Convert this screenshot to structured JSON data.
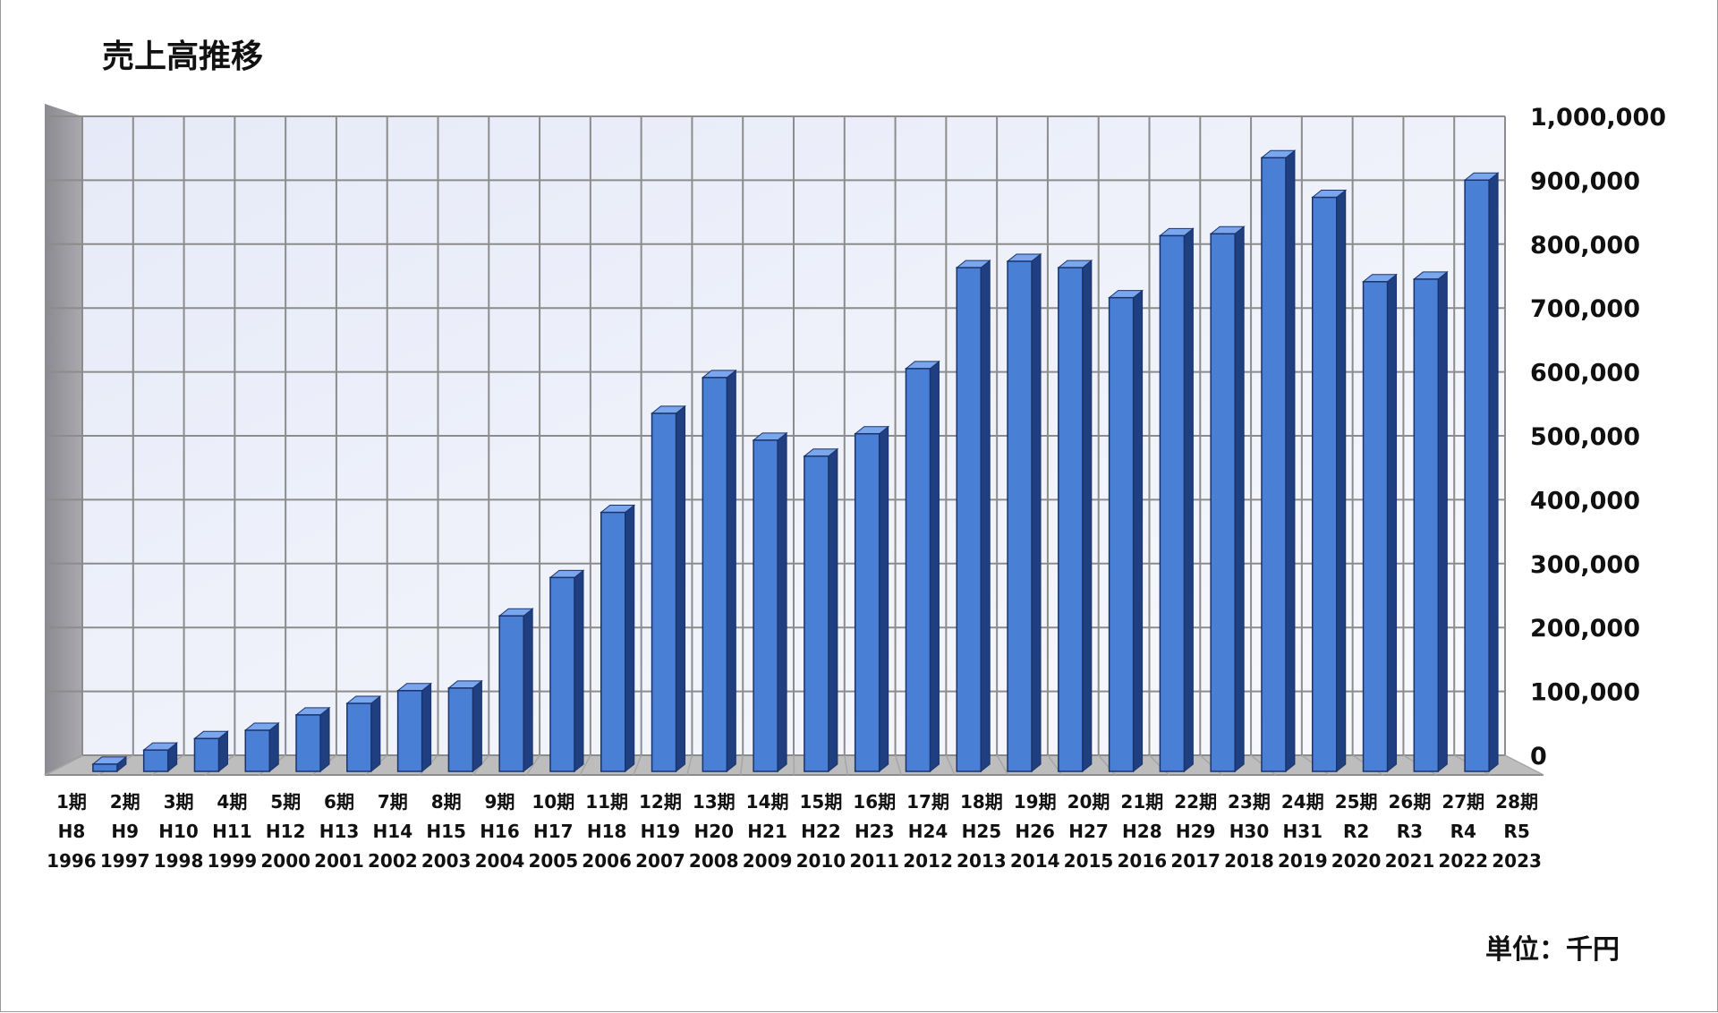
{
  "chart_data": {
    "type": "bar",
    "title": "売上高推移",
    "unit_note": "単位：千円",
    "ylim": [
      0,
      1000000
    ],
    "y_ticks": [
      "0",
      "100,000",
      "200,000",
      "300,000",
      "400,000",
      "500,000",
      "600,000",
      "700,000",
      "800,000",
      "900,000",
      "1,000,000"
    ],
    "y_tick_values": [
      0,
      100000,
      200000,
      300000,
      400000,
      500000,
      600000,
      700000,
      800000,
      900000,
      1000000
    ],
    "grid": true,
    "categories": [
      [
        "1期",
        "H8",
        "1996"
      ],
      [
        "2期",
        "H9",
        "1997"
      ],
      [
        "3期",
        "H10",
        "1998"
      ],
      [
        "4期",
        "H11",
        "1999"
      ],
      [
        "5期",
        "H12",
        "2000"
      ],
      [
        "6期",
        "H13",
        "2001"
      ],
      [
        "7期",
        "H14",
        "2002"
      ],
      [
        "8期",
        "H15",
        "2003"
      ],
      [
        "9期",
        "H16",
        "2004"
      ],
      [
        "10期",
        "H17",
        "2005"
      ],
      [
        "11期",
        "H18",
        "2006"
      ],
      [
        "12期",
        "H19",
        "2007"
      ],
      [
        "13期",
        "H20",
        "2008"
      ],
      [
        "14期",
        "H21",
        "2009"
      ],
      [
        "15期",
        "H22",
        "2010"
      ],
      [
        "16期",
        "H23",
        "2011"
      ],
      [
        "17期",
        "H24",
        "2012"
      ],
      [
        "18期",
        "H25",
        "2013"
      ],
      [
        "19期",
        "H26",
        "2014"
      ],
      [
        "20期",
        "H27",
        "2015"
      ],
      [
        "21期",
        "H28",
        "2016"
      ],
      [
        "22期",
        "H29",
        "2017"
      ],
      [
        "23期",
        "H30",
        "2018"
      ],
      [
        "24期",
        "H31",
        "2019"
      ],
      [
        "25期",
        "R2",
        "2020"
      ],
      [
        "26期",
        "R3",
        "2021"
      ],
      [
        "27期",
        "R4",
        "2022"
      ],
      [
        "28期",
        "R5",
        "2023"
      ]
    ],
    "values": [
      3000,
      25000,
      43000,
      56000,
      80000,
      98000,
      118000,
      122000,
      235000,
      295000,
      397000,
      552000,
      608000,
      510000,
      485000,
      520000,
      622000,
      780000,
      790000,
      780000,
      733000,
      830000,
      833000,
      952000,
      890000,
      758000,
      762000,
      917000
    ],
    "colors": {
      "bar_front": "#4a7fd6",
      "bar_side": "#1f3f80",
      "bar_top": "#7aa6ee",
      "grid": "#8c8c8c",
      "wall": "#eef1fa",
      "left_wall": "#9a9aa0",
      "floor": "#bdbdbd"
    }
  }
}
